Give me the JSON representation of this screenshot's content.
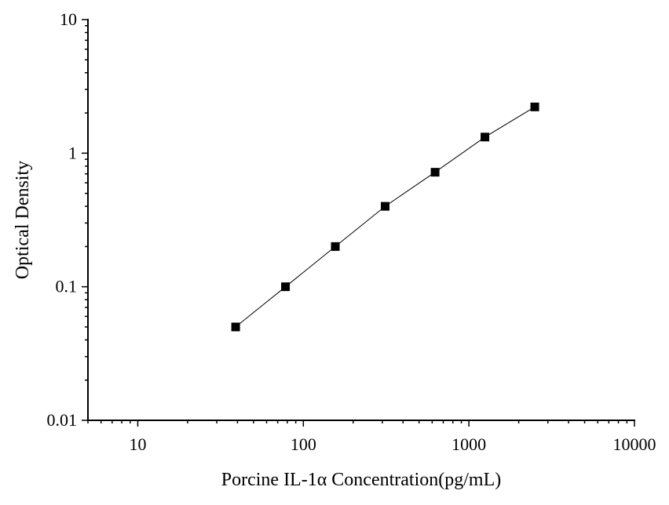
{
  "chart_data": {
    "type": "scatter",
    "title": "",
    "xlabel": "Porcine IL-1α Concentration(pg/mL)",
    "ylabel": "Optical Density",
    "xscale": "log",
    "yscale": "log",
    "xlim": [
      5,
      10000
    ],
    "ylim": [
      0.01,
      10
    ],
    "x_tick_labels": [
      "10",
      "100",
      "1000",
      "10000"
    ],
    "y_tick_labels": [
      "10",
      "1",
      "0.1",
      "0.01"
    ],
    "grid": false,
    "legend": "none",
    "marker": "square",
    "line": true,
    "color": "#000000",
    "series": [
      {
        "x": [
          39,
          78,
          156,
          312,
          625,
          1250,
          2500
        ],
        "y": [
          0.05,
          0.1,
          0.2,
          0.4,
          0.72,
          1.32,
          2.22
        ]
      }
    ]
  }
}
